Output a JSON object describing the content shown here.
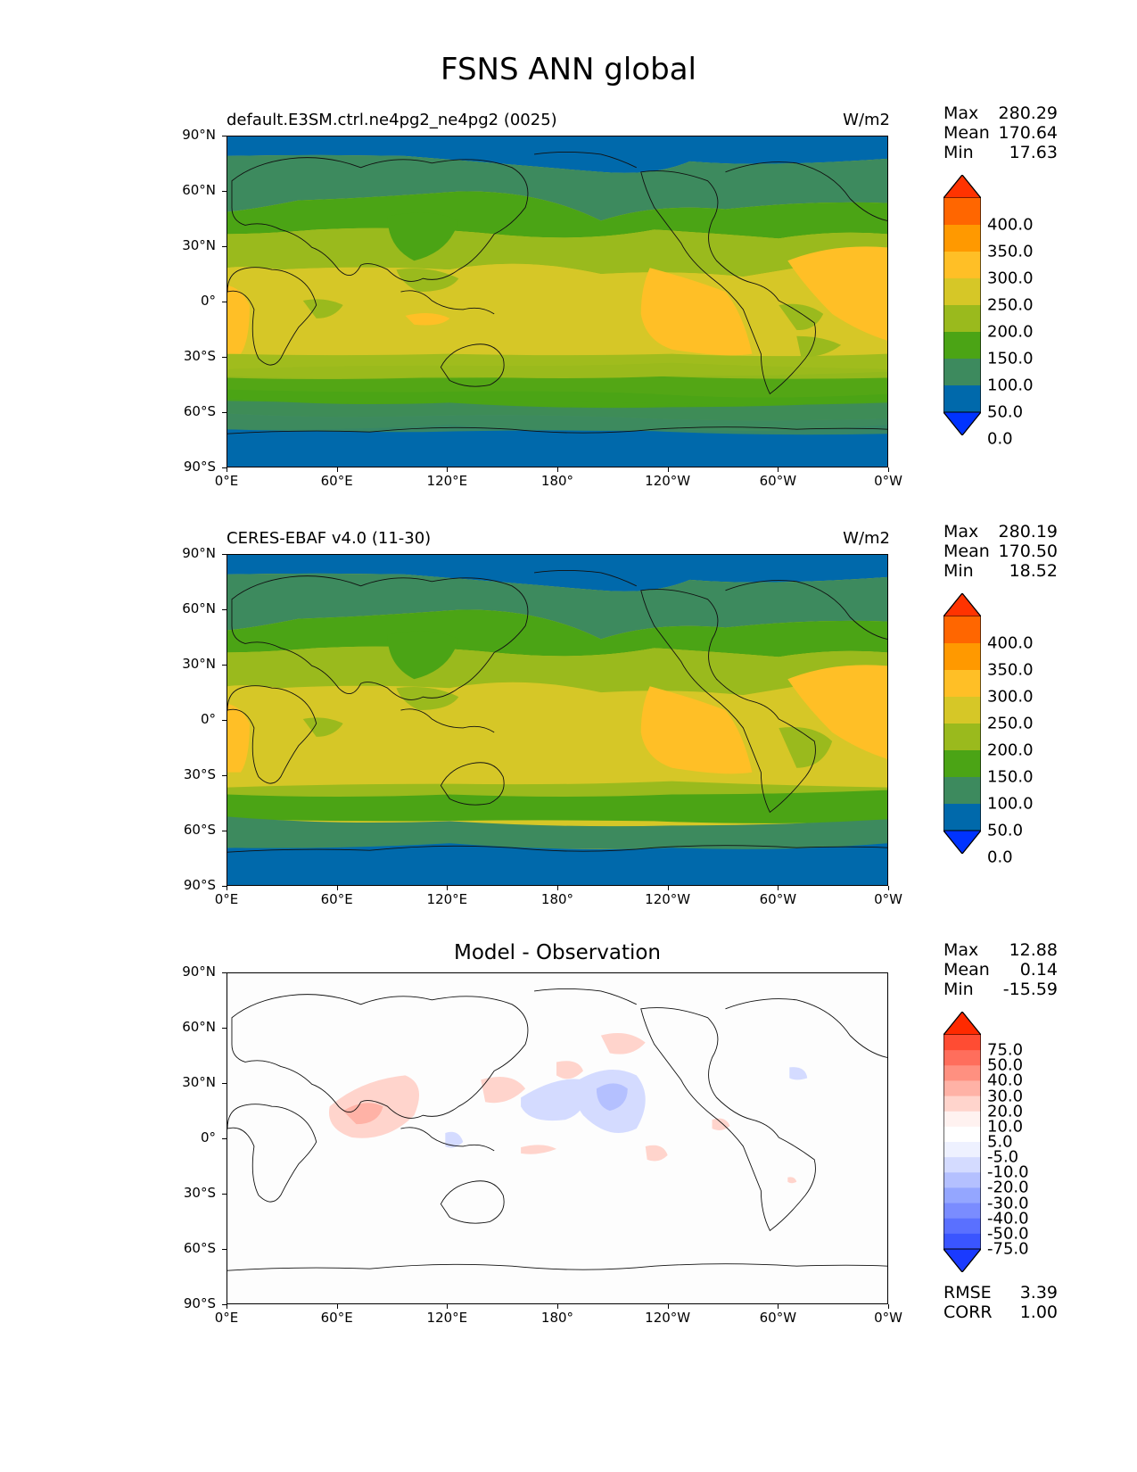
{
  "figure_title": "FSNS ANN global",
  "x_ticks": [
    "0°E",
    "60°E",
    "120°E",
    "180°",
    "120°W",
    "60°W",
    "0°W"
  ],
  "y_ticks": [
    "90°N",
    "60°N",
    "30°N",
    "0°",
    "30°S",
    "60°S",
    "90°S"
  ],
  "panels": [
    {
      "title_left": "default.E3SM.ctrl.ne4pg2_ne4pg2 (0025)",
      "title_right": "W/m2",
      "stats": {
        "max_label": "Max",
        "max": "280.29",
        "mean_label": "Mean",
        "mean": "170.64",
        "min_label": "Min",
        "min": "17.63"
      },
      "colorbar_labels": [
        "400.0",
        "350.0",
        "300.0",
        "250.0",
        "200.0",
        "150.0",
        "100.0",
        "50.0",
        "0.0"
      ]
    },
    {
      "title_left": "CERES-EBAF v4.0 (11-30)",
      "title_right": "W/m2",
      "stats": {
        "max_label": "Max",
        "max": "280.19",
        "mean_label": "Mean",
        "mean": "170.50",
        "min_label": "Min",
        "min": "18.52"
      },
      "colorbar_labels": [
        "400.0",
        "350.0",
        "300.0",
        "250.0",
        "200.0",
        "150.0",
        "100.0",
        "50.0",
        "0.0"
      ]
    },
    {
      "title_center": "Model - Observation",
      "stats": {
        "max_label": "Max",
        "max": "12.88",
        "mean_label": "Mean",
        "mean": "0.14",
        "min_label": "Min",
        "min": "-15.59"
      },
      "colorbar_labels": [
        "75.0",
        "50.0",
        "40.0",
        "30.0",
        "20.0",
        "10.0",
        "5.0",
        "-5.0",
        "-10.0",
        "-20.0",
        "-30.0",
        "-40.0",
        "-50.0",
        "-75.0"
      ],
      "rmse_label": "RMSE",
      "rmse": "3.39",
      "corr_label": "CORR",
      "corr": "1.00"
    }
  ],
  "colors": {
    "main_scale": [
      "#ff3300",
      "#ff6600",
      "#ff9900",
      "#ffbf26",
      "#d6c727",
      "#9aba1d",
      "#4ba415",
      "#3d8a5e",
      "#0069ab",
      "#0033ff"
    ],
    "diff_scale": [
      "#ff2a00",
      "#ff4c33",
      "#ff6e5c",
      "#ff9080",
      "#ffb2a6",
      "#ffd4cc",
      "#fff2f0",
      "#ffffff",
      "#eef1ff",
      "#d4dbff",
      "#b4c0ff",
      "#94a6ff",
      "#7a8cff",
      "#5a70ff",
      "#3a55ff",
      "#1a3aff"
    ]
  },
  "chart_data": [
    {
      "type": "heatmap",
      "title": "default.E3SM.ctrl.ne4pg2_ne4pg2 (0025)",
      "units": "W/m2",
      "x_range": [
        "0°E",
        "0°W"
      ],
      "y_range": [
        "90°S",
        "90°N"
      ],
      "colorbar_levels": [
        0,
        50,
        100,
        150,
        200,
        250,
        300,
        350,
        400
      ],
      "zonal_bands": [
        {
          "lat_north": 90,
          "lat_south": 70,
          "value": 25
        },
        {
          "lat_north": 70,
          "lat_south": 55,
          "value": 80
        },
        {
          "lat_north": 55,
          "lat_south": 40,
          "value": 125
        },
        {
          "lat_north": 40,
          "lat_south": 25,
          "value": 175
        },
        {
          "lat_north": 25,
          "lat_south": -30,
          "value": 225
        },
        {
          "lat_north": -30,
          "lat_south": -40,
          "value": 175
        },
        {
          "lat_north": -40,
          "lat_south": -55,
          "value": 125
        },
        {
          "lat_north": -55,
          "lat_south": -68,
          "value": 80
        },
        {
          "lat_north": -68,
          "lat_south": -90,
          "value": 25
        }
      ],
      "stats": {
        "max": 280.29,
        "mean": 170.64,
        "min": 17.63
      }
    },
    {
      "type": "heatmap",
      "title": "CERES-EBAF v4.0 (11-30)",
      "units": "W/m2",
      "x_range": [
        "0°E",
        "0°W"
      ],
      "y_range": [
        "90°S",
        "90°N"
      ],
      "colorbar_levels": [
        0,
        50,
        100,
        150,
        200,
        250,
        300,
        350,
        400
      ],
      "zonal_bands": [
        {
          "lat_north": 90,
          "lat_south": 70,
          "value": 25
        },
        {
          "lat_north": 70,
          "lat_south": 55,
          "value": 80
        },
        {
          "lat_north": 55,
          "lat_south": 40,
          "value": 125
        },
        {
          "lat_north": 40,
          "lat_south": 25,
          "value": 175
        },
        {
          "lat_north": 25,
          "lat_south": -30,
          "value": 225
        },
        {
          "lat_north": -30,
          "lat_south": -40,
          "value": 175
        },
        {
          "lat_north": -40,
          "lat_south": -55,
          "value": 125
        },
        {
          "lat_north": -55,
          "lat_south": -68,
          "value": 80
        },
        {
          "lat_north": -68,
          "lat_south": -90,
          "value": 25
        }
      ],
      "stats": {
        "max": 280.19,
        "mean": 170.5,
        "min": 18.52
      }
    },
    {
      "type": "heatmap",
      "title": "Model - Observation",
      "x_range": [
        "0°E",
        "0°W"
      ],
      "y_range": [
        "90°S",
        "90°N"
      ],
      "colorbar_levels": [
        -75,
        -50,
        -40,
        -30,
        -20,
        -10,
        -5,
        5,
        10,
        20,
        30,
        40,
        50,
        75
      ],
      "stats": {
        "max": 12.88,
        "mean": 0.14,
        "min": -15.59,
        "rmse": 3.39,
        "corr": 1.0
      }
    }
  ]
}
